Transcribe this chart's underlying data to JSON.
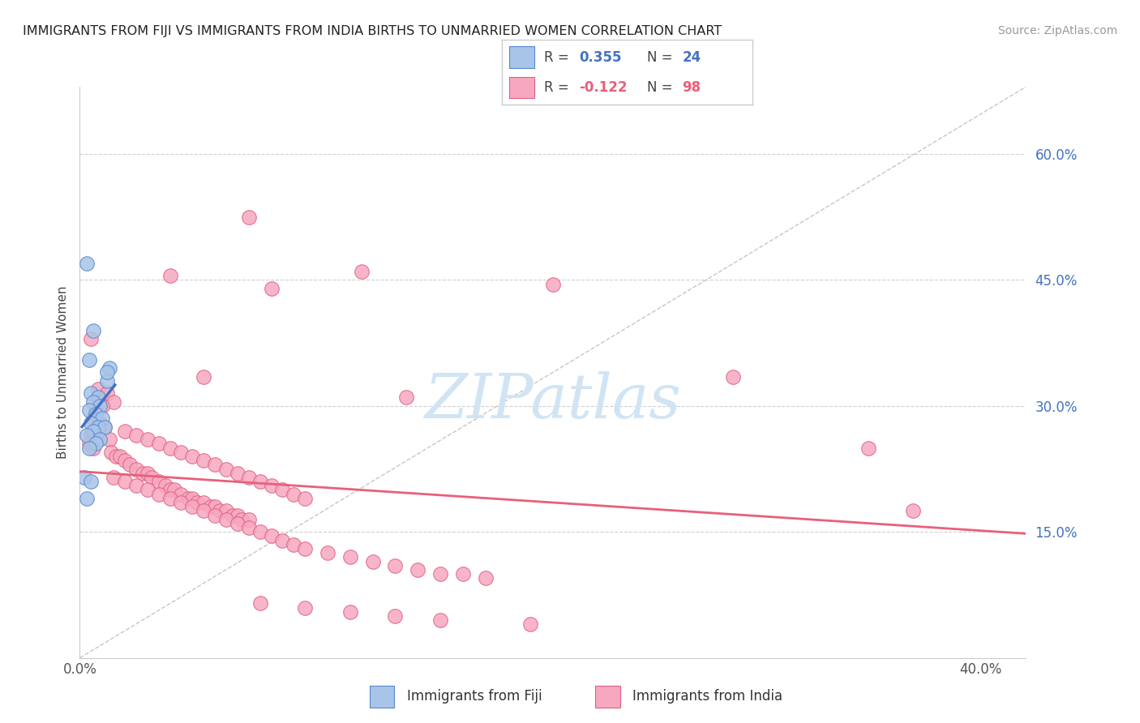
{
  "title": "IMMIGRANTS FROM FIJI VS IMMIGRANTS FROM INDIA BIRTHS TO UNMARRIED WOMEN CORRELATION CHART",
  "source": "Source: ZipAtlas.com",
  "ylabel": "Births to Unmarried Women",
  "right_yticks": [
    0.15,
    0.3,
    0.45,
    0.6
  ],
  "right_yticklabels": [
    "15.0%",
    "30.0%",
    "45.0%",
    "60.0%"
  ],
  "xlim": [
    0.0,
    0.42
  ],
  "ylim": [
    0.0,
    0.68
  ],
  "fiji_color": "#a8c4e8",
  "india_color": "#f7a8c0",
  "fiji_edge_color": "#5588cc",
  "india_edge_color": "#e06080",
  "trend_blue": "#4472c4",
  "trend_pink": "#e8607a",
  "ref_line_color": "#c0c0c0",
  "watermark": "ZIPatlas",
  "watermark_color": "#d0e4f4",
  "label_fiji": "Immigrants from Fiji",
  "label_india": "Immigrants from India",
  "fiji_points": [
    [
      0.003,
      0.47
    ],
    [
      0.006,
      0.39
    ],
    [
      0.004,
      0.355
    ],
    [
      0.013,
      0.345
    ],
    [
      0.012,
      0.33
    ],
    [
      0.005,
      0.315
    ],
    [
      0.008,
      0.31
    ],
    [
      0.006,
      0.305
    ],
    [
      0.009,
      0.3
    ],
    [
      0.004,
      0.295
    ],
    [
      0.007,
      0.29
    ],
    [
      0.01,
      0.285
    ],
    [
      0.005,
      0.28
    ],
    [
      0.008,
      0.275
    ],
    [
      0.011,
      0.275
    ],
    [
      0.006,
      0.27
    ],
    [
      0.003,
      0.265
    ],
    [
      0.009,
      0.26
    ],
    [
      0.007,
      0.255
    ],
    [
      0.004,
      0.25
    ],
    [
      0.012,
      0.34
    ],
    [
      0.002,
      0.215
    ],
    [
      0.003,
      0.19
    ],
    [
      0.005,
      0.21
    ]
  ],
  "india_points": [
    [
      0.075,
      0.525
    ],
    [
      0.125,
      0.46
    ],
    [
      0.21,
      0.445
    ],
    [
      0.04,
      0.455
    ],
    [
      0.085,
      0.44
    ],
    [
      0.055,
      0.335
    ],
    [
      0.145,
      0.31
    ],
    [
      0.29,
      0.335
    ],
    [
      0.35,
      0.25
    ],
    [
      0.37,
      0.175
    ],
    [
      0.005,
      0.38
    ],
    [
      0.008,
      0.32
    ],
    [
      0.012,
      0.315
    ],
    [
      0.015,
      0.305
    ],
    [
      0.01,
      0.3
    ],
    [
      0.007,
      0.295
    ],
    [
      0.006,
      0.285
    ],
    [
      0.009,
      0.28
    ],
    [
      0.011,
      0.275
    ],
    [
      0.008,
      0.27
    ],
    [
      0.005,
      0.265
    ],
    [
      0.013,
      0.26
    ],
    [
      0.004,
      0.255
    ],
    [
      0.006,
      0.25
    ],
    [
      0.014,
      0.245
    ],
    [
      0.016,
      0.24
    ],
    [
      0.018,
      0.24
    ],
    [
      0.02,
      0.235
    ],
    [
      0.022,
      0.23
    ],
    [
      0.025,
      0.225
    ],
    [
      0.028,
      0.22
    ],
    [
      0.03,
      0.22
    ],
    [
      0.032,
      0.215
    ],
    [
      0.035,
      0.21
    ],
    [
      0.038,
      0.205
    ],
    [
      0.04,
      0.2
    ],
    [
      0.042,
      0.2
    ],
    [
      0.045,
      0.195
    ],
    [
      0.048,
      0.19
    ],
    [
      0.05,
      0.19
    ],
    [
      0.052,
      0.185
    ],
    [
      0.055,
      0.185
    ],
    [
      0.058,
      0.18
    ],
    [
      0.06,
      0.18
    ],
    [
      0.062,
      0.175
    ],
    [
      0.065,
      0.175
    ],
    [
      0.068,
      0.17
    ],
    [
      0.07,
      0.17
    ],
    [
      0.072,
      0.165
    ],
    [
      0.075,
      0.165
    ],
    [
      0.02,
      0.27
    ],
    [
      0.025,
      0.265
    ],
    [
      0.03,
      0.26
    ],
    [
      0.035,
      0.255
    ],
    [
      0.04,
      0.25
    ],
    [
      0.045,
      0.245
    ],
    [
      0.05,
      0.24
    ],
    [
      0.055,
      0.235
    ],
    [
      0.06,
      0.23
    ],
    [
      0.065,
      0.225
    ],
    [
      0.07,
      0.22
    ],
    [
      0.075,
      0.215
    ],
    [
      0.08,
      0.21
    ],
    [
      0.085,
      0.205
    ],
    [
      0.09,
      0.2
    ],
    [
      0.095,
      0.195
    ],
    [
      0.1,
      0.19
    ],
    [
      0.015,
      0.215
    ],
    [
      0.02,
      0.21
    ],
    [
      0.025,
      0.205
    ],
    [
      0.03,
      0.2
    ],
    [
      0.035,
      0.195
    ],
    [
      0.04,
      0.19
    ],
    [
      0.045,
      0.185
    ],
    [
      0.05,
      0.18
    ],
    [
      0.055,
      0.175
    ],
    [
      0.06,
      0.17
    ],
    [
      0.065,
      0.165
    ],
    [
      0.07,
      0.16
    ],
    [
      0.075,
      0.155
    ],
    [
      0.08,
      0.15
    ],
    [
      0.085,
      0.145
    ],
    [
      0.09,
      0.14
    ],
    [
      0.095,
      0.135
    ],
    [
      0.1,
      0.13
    ],
    [
      0.11,
      0.125
    ],
    [
      0.12,
      0.12
    ],
    [
      0.13,
      0.115
    ],
    [
      0.14,
      0.11
    ],
    [
      0.15,
      0.105
    ],
    [
      0.16,
      0.1
    ],
    [
      0.17,
      0.1
    ],
    [
      0.18,
      0.095
    ],
    [
      0.08,
      0.065
    ],
    [
      0.1,
      0.06
    ],
    [
      0.12,
      0.055
    ],
    [
      0.14,
      0.05
    ],
    [
      0.16,
      0.045
    ],
    [
      0.2,
      0.04
    ]
  ]
}
